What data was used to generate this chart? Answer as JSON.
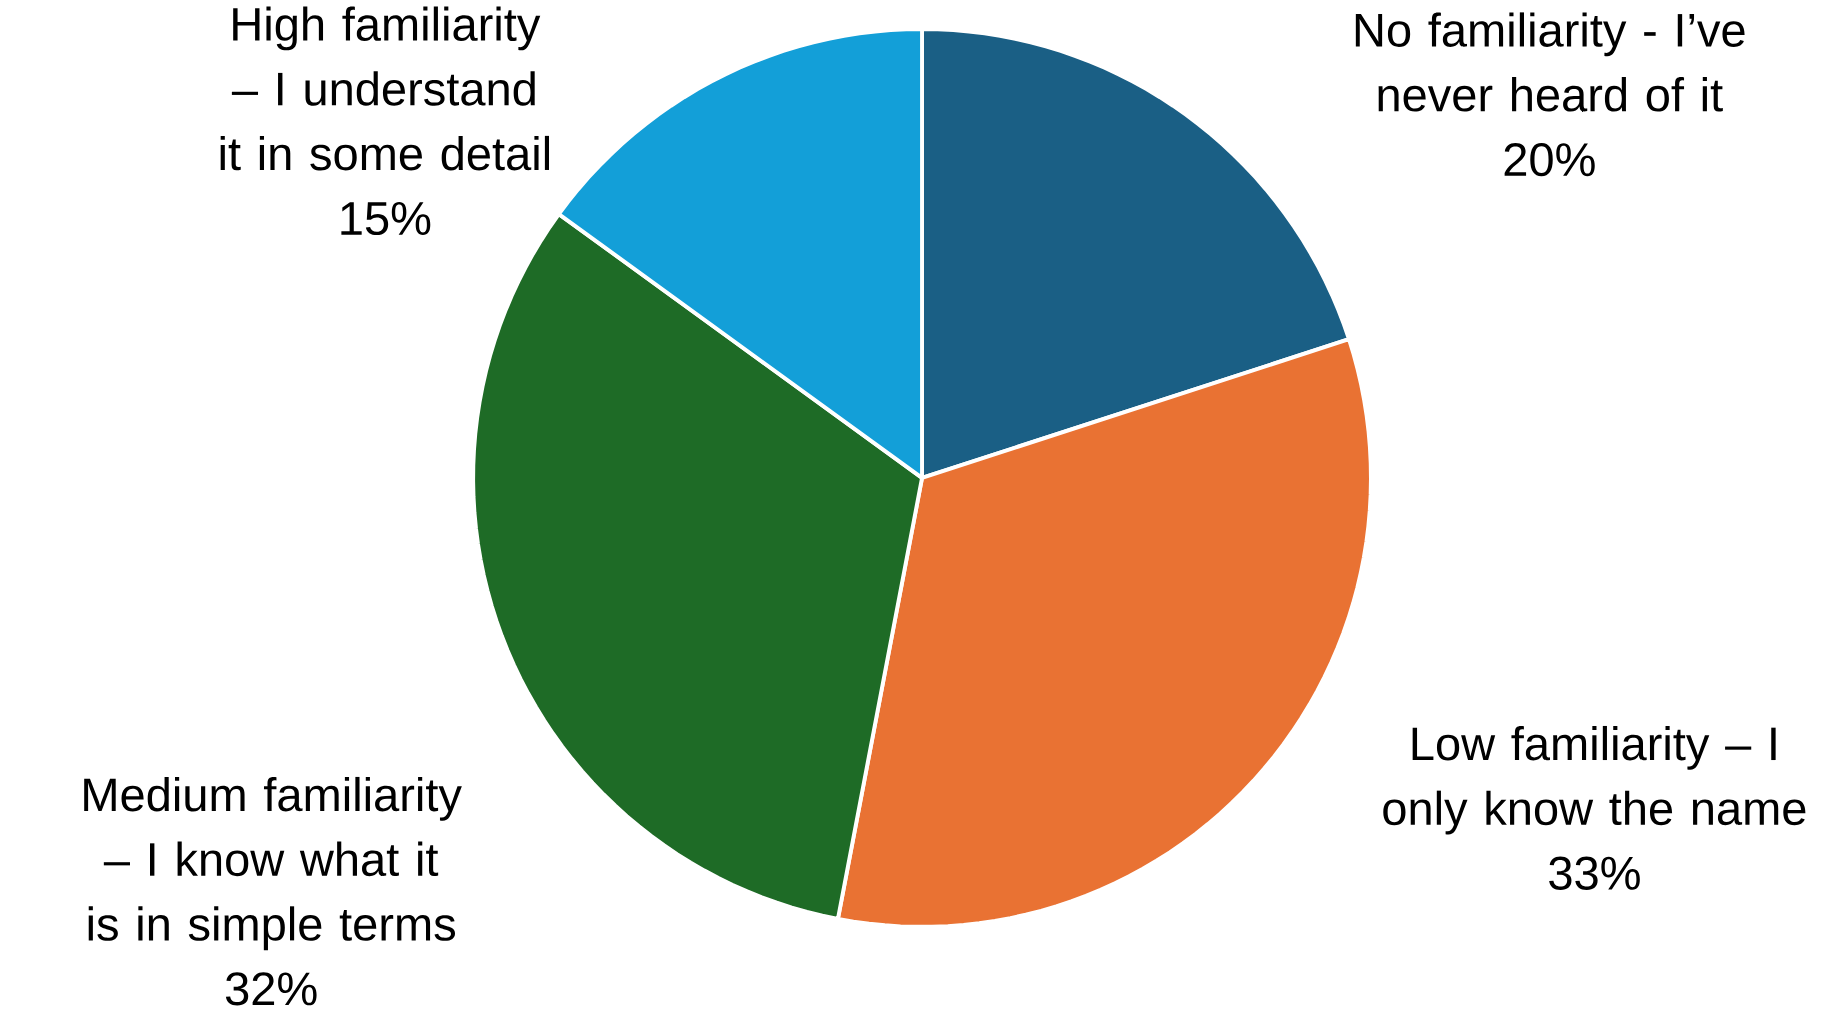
{
  "chart_data": {
    "type": "pie",
    "categories": [
      "No familiarity - I’ve never heard of it",
      "Low familiarity – I only know the name",
      "Medium familiarity – I know what it is in simple terms",
      "High familiarity – I understand it in some detail"
    ],
    "values": [
      20,
      33,
      32,
      15
    ],
    "value_labels": [
      "20%",
      "33%",
      "32%",
      "15%"
    ],
    "colors": [
      "#1a5f85",
      "#e97233",
      "#1e6b26",
      "#139fd8"
    ]
  }
}
